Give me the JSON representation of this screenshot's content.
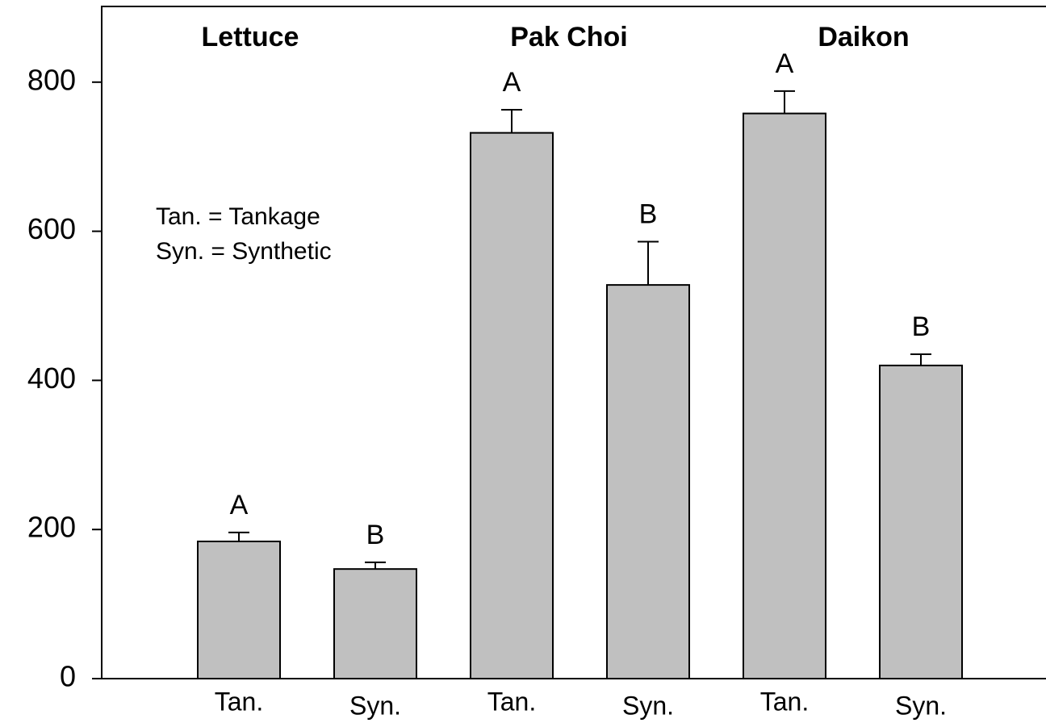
{
  "chart_data": {
    "type": "bar",
    "categories": [
      "Tan.",
      "Syn.",
      "Tan.",
      "Syn.",
      "Tan.",
      "Syn."
    ],
    "values": [
      184,
      147,
      732,
      528,
      758,
      420
    ],
    "errors": [
      12,
      9,
      31,
      58,
      30,
      15
    ],
    "letters": [
      "A",
      "B",
      "A",
      "B",
      "A",
      "B"
    ],
    "groups": [
      "Lettuce",
      "Pak Choi",
      "Daikon"
    ],
    "annotations": [
      "Tan. = Tankage",
      "Syn. = Synthetic"
    ],
    "color": "#c0c0c0",
    "ylim": [
      0,
      900
    ],
    "yticks": [
      0,
      200,
      400,
      600,
      800
    ]
  }
}
